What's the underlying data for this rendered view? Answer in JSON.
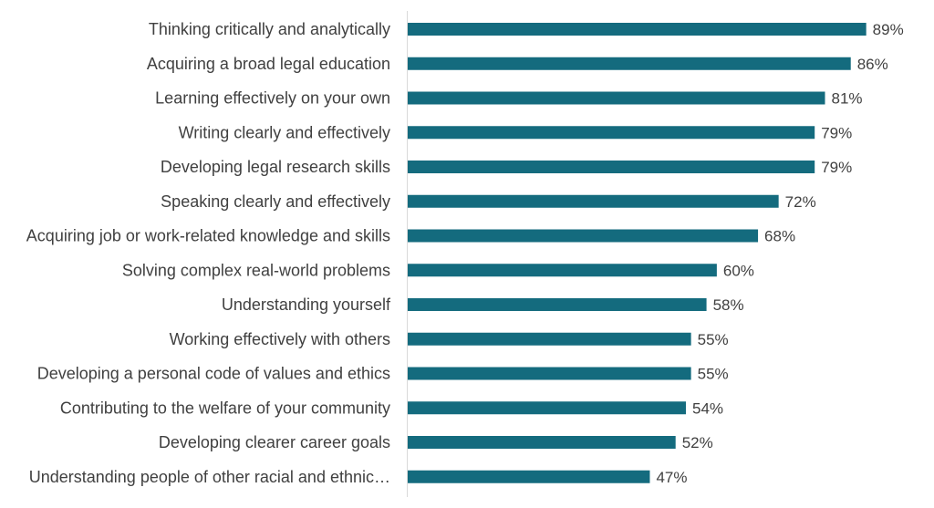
{
  "chart_data": {
    "type": "bar",
    "orientation": "horizontal",
    "categories": [
      "Thinking critically and analytically",
      "Acquiring a broad legal education",
      "Learning effectively on your own",
      "Writing clearly and effectively",
      "Developing legal research skills",
      "Speaking clearly and effectively",
      "Acquiring job or work-related knowledge and skills",
      "Solving complex real-world problems",
      "Understanding yourself",
      "Working effectively with others",
      "Developing a personal code of values and ethics",
      "Contributing to the welfare of your community",
      "Developing clearer career goals",
      "Understanding people of other racial and ethnic…"
    ],
    "values": [
      89,
      86,
      81,
      79,
      79,
      72,
      68,
      60,
      58,
      55,
      55,
      54,
      52,
      47
    ],
    "value_labels": [
      "89%",
      "86%",
      "81%",
      "79%",
      "79%",
      "72%",
      "68%",
      "60%",
      "58%",
      "55%",
      "55%",
      "54%",
      "52%",
      "47%"
    ],
    "bar_color": "#146B7E",
    "axis_line_color": "#D9D9D9",
    "title": "",
    "xlabel": "",
    "ylabel": "",
    "xlim": [
      0,
      100
    ],
    "grid": false,
    "legend": "none"
  }
}
